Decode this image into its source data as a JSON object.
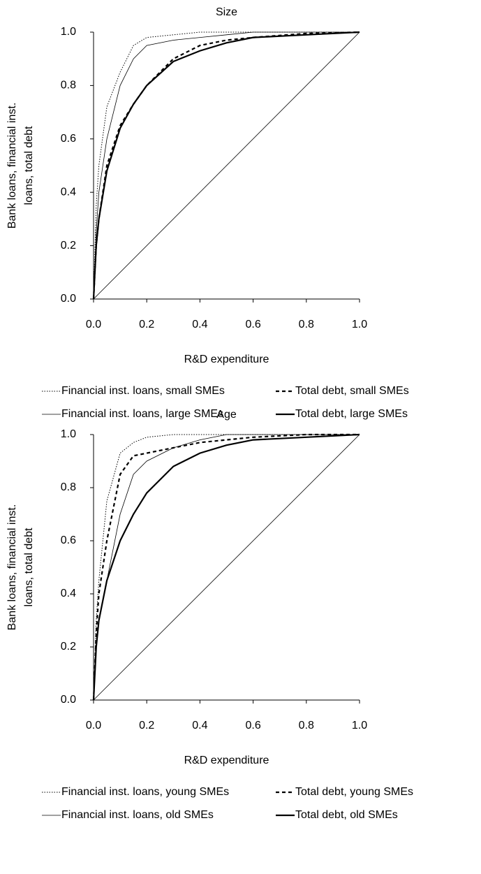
{
  "chart_data": [
    {
      "type": "line",
      "title": "Size",
      "xlabel": "R&D expenditure",
      "ylabel": [
        "Bank loans, financial inst.",
        "loans, total debt"
      ],
      "x": [
        0,
        0.01,
        0.02,
        0.05,
        0.1,
        0.15,
        0.2,
        0.3,
        0.4,
        0.5,
        0.6,
        0.8,
        1.0
      ],
      "xlim": [
        0,
        1
      ],
      "ylim": [
        0,
        1
      ],
      "xticks": [
        {
          "value": 0,
          "label": "0.0"
        },
        0.2,
        0.4,
        0.6,
        0.8,
        {
          "value": 1,
          "label": "1.0"
        }
      ],
      "yticks": [
        {
          "value": 0,
          "label": "0.0"
        },
        0.2,
        0.4,
        0.6,
        0.8,
        {
          "value": 1,
          "label": "1.0"
        }
      ],
      "grid": false,
      "legend": "bottom",
      "series": [
        {
          "name": "Financial inst. loans, small SMEs",
          "color": "#000",
          "dash": "dotted",
          "values": [
            0,
            0.35,
            0.5,
            0.72,
            0.85,
            0.95,
            0.98,
            0.99,
            1,
            1,
            1,
            1,
            1
          ]
        },
        {
          "name": "Total debt, small SMEs",
          "color": "#000",
          "dash": "dashed",
          "values": [
            0,
            0.2,
            0.3,
            0.5,
            0.65,
            0.73,
            0.8,
            0.9,
            0.95,
            0.97,
            0.98,
            0.995,
            1
          ]
        },
        {
          "name": "Financial inst. loans, large SMEs",
          "color": "#000",
          "dash": "thin",
          "values": [
            0,
            0.25,
            0.4,
            0.6,
            0.8,
            0.9,
            0.95,
            0.97,
            0.98,
            0.99,
            1,
            1,
            1
          ]
        },
        {
          "name": "Total debt, large SMEs",
          "color": "#000",
          "dash": "thick",
          "values": [
            0,
            0.2,
            0.3,
            0.48,
            0.64,
            0.73,
            0.8,
            0.89,
            0.93,
            0.96,
            0.98,
            0.99,
            1
          ]
        }
      ]
    },
    {
      "type": "line",
      "title": "Age",
      "xlabel": "R&D expenditure",
      "ylabel": [
        "Bank loans, financial inst.",
        "loans, total debt"
      ],
      "x": [
        0,
        0.01,
        0.02,
        0.05,
        0.1,
        0.15,
        0.2,
        0.3,
        0.4,
        0.5,
        0.6,
        0.8,
        1.0
      ],
      "xlim": [
        0,
        1
      ],
      "ylim": [
        0,
        1
      ],
      "xticks": [
        {
          "value": 0,
          "label": "0.0"
        },
        0.2,
        0.4,
        0.6,
        0.8,
        {
          "value": 1,
          "label": "1.0"
        }
      ],
      "yticks": [
        {
          "value": 0,
          "label": "0.0"
        },
        0.2,
        0.4,
        0.6,
        0.8,
        {
          "value": 1,
          "label": "1.0"
        }
      ],
      "grid": false,
      "legend": "bottom",
      "series": [
        {
          "name": "Financial inst. loans, young SMEs",
          "color": "#000",
          "dash": "dotted",
          "values": [
            0,
            0.3,
            0.45,
            0.75,
            0.93,
            0.97,
            0.99,
            1,
            1,
            1,
            1,
            1,
            1
          ]
        },
        {
          "name": "Total debt, young SMEs",
          "color": "#000",
          "dash": "dashed",
          "values": [
            0,
            0.25,
            0.4,
            0.6,
            0.85,
            0.92,
            0.93,
            0.95,
            0.97,
            0.98,
            0.99,
            1,
            1
          ]
        },
        {
          "name": "Financial inst. loans, old SMEs",
          "color": "#000",
          "dash": "thin",
          "values": [
            0,
            0.2,
            0.3,
            0.45,
            0.7,
            0.85,
            0.9,
            0.95,
            0.98,
            1,
            1,
            1,
            1
          ]
        },
        {
          "name": "Total debt, old SMEs",
          "color": "#000",
          "dash": "thick",
          "values": [
            0,
            0.2,
            0.3,
            0.45,
            0.6,
            0.7,
            0.78,
            0.88,
            0.93,
            0.96,
            0.98,
            0.99,
            1
          ]
        }
      ]
    }
  ]
}
